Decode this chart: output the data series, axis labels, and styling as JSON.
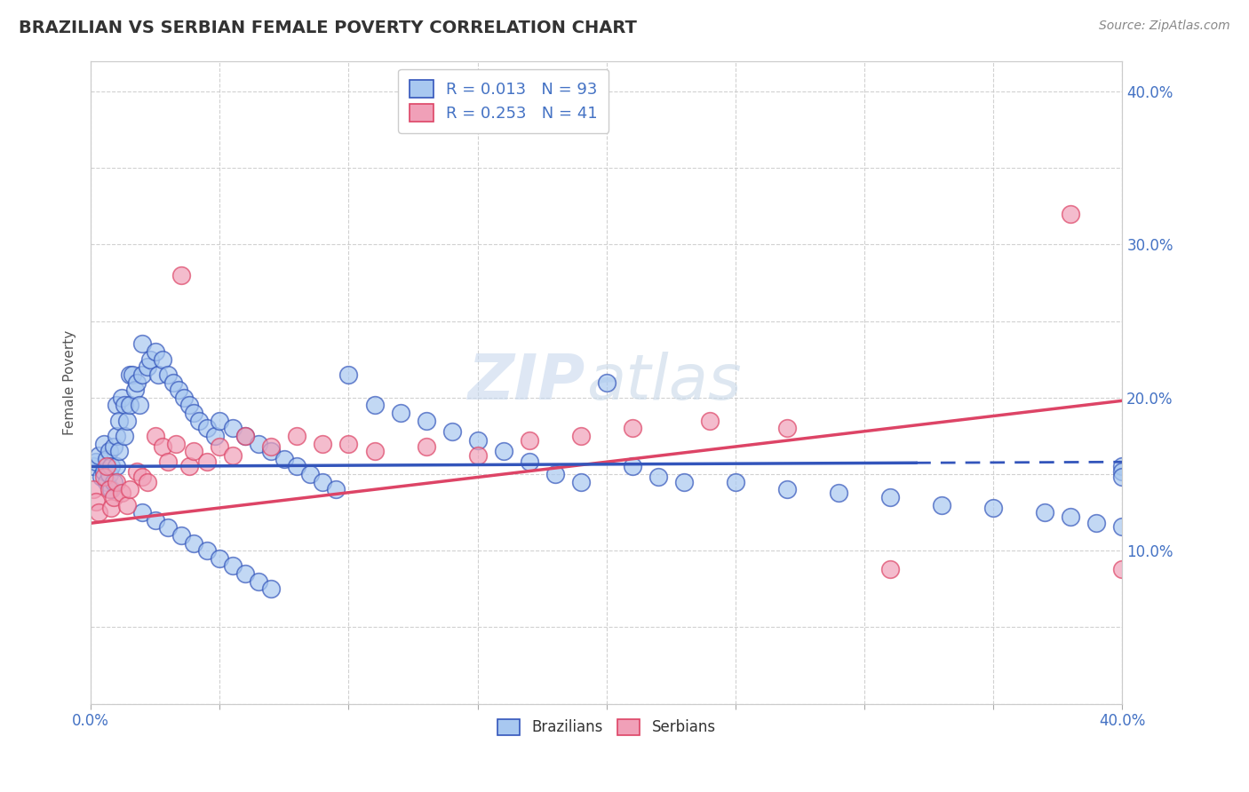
{
  "title": "BRAZILIAN VS SERBIAN FEMALE POVERTY CORRELATION CHART",
  "source_text": "Source: ZipAtlas.com",
  "ylabel": "Female Poverty",
  "xlim": [
    0.0,
    0.4
  ],
  "ylim": [
    0.0,
    0.42
  ],
  "color_brazil": "#A8C8F0",
  "color_serbia": "#F0A0B8",
  "line_color_brazil": "#3355BB",
  "line_color_serbia": "#DD4466",
  "brazil_R": 0.013,
  "brazil_N": 93,
  "serbia_R": 0.253,
  "serbia_N": 41,
  "brazil_line_y0": 0.155,
  "brazil_line_y1": 0.158,
  "serbia_line_y0": 0.118,
  "serbia_line_y1": 0.198,
  "brazil_scatter": {
    "x": [
      0.001,
      0.002,
      0.003,
      0.004,
      0.005,
      0.005,
      0.006,
      0.006,
      0.007,
      0.007,
      0.008,
      0.008,
      0.009,
      0.009,
      0.01,
      0.01,
      0.01,
      0.011,
      0.011,
      0.012,
      0.013,
      0.013,
      0.014,
      0.015,
      0.015,
      0.016,
      0.017,
      0.018,
      0.019,
      0.02,
      0.02,
      0.022,
      0.023,
      0.025,
      0.026,
      0.028,
      0.03,
      0.032,
      0.034,
      0.036,
      0.038,
      0.04,
      0.042,
      0.045,
      0.048,
      0.05,
      0.055,
      0.06,
      0.065,
      0.07,
      0.075,
      0.08,
      0.085,
      0.09,
      0.095,
      0.1,
      0.11,
      0.12,
      0.13,
      0.14,
      0.15,
      0.16,
      0.17,
      0.18,
      0.19,
      0.2,
      0.21,
      0.22,
      0.23,
      0.25,
      0.27,
      0.29,
      0.31,
      0.33,
      0.35,
      0.37,
      0.38,
      0.39,
      0.4,
      0.4,
      0.4,
      0.4,
      0.02,
      0.025,
      0.03,
      0.035,
      0.04,
      0.045,
      0.05,
      0.055,
      0.06,
      0.065,
      0.07
    ],
    "y": [
      0.155,
      0.158,
      0.162,
      0.148,
      0.152,
      0.17,
      0.16,
      0.145,
      0.165,
      0.15,
      0.155,
      0.14,
      0.168,
      0.145,
      0.195,
      0.175,
      0.155,
      0.185,
      0.165,
      0.2,
      0.195,
      0.175,
      0.185,
      0.215,
      0.195,
      0.215,
      0.205,
      0.21,
      0.195,
      0.235,
      0.215,
      0.22,
      0.225,
      0.23,
      0.215,
      0.225,
      0.215,
      0.21,
      0.205,
      0.2,
      0.195,
      0.19,
      0.185,
      0.18,
      0.175,
      0.185,
      0.18,
      0.175,
      0.17,
      0.165,
      0.16,
      0.155,
      0.15,
      0.145,
      0.14,
      0.215,
      0.195,
      0.19,
      0.185,
      0.178,
      0.172,
      0.165,
      0.158,
      0.15,
      0.145,
      0.21,
      0.155,
      0.148,
      0.145,
      0.145,
      0.14,
      0.138,
      0.135,
      0.13,
      0.128,
      0.125,
      0.122,
      0.118,
      0.116,
      0.155,
      0.152,
      0.148,
      0.125,
      0.12,
      0.115,
      0.11,
      0.105,
      0.1,
      0.095,
      0.09,
      0.085,
      0.08,
      0.075
    ]
  },
  "serbia_scatter": {
    "x": [
      0.001,
      0.002,
      0.003,
      0.005,
      0.006,
      0.007,
      0.008,
      0.009,
      0.01,
      0.012,
      0.014,
      0.015,
      0.018,
      0.02,
      0.022,
      0.025,
      0.028,
      0.03,
      0.033,
      0.035,
      0.038,
      0.04,
      0.045,
      0.05,
      0.055,
      0.06,
      0.07,
      0.08,
      0.09,
      0.1,
      0.11,
      0.13,
      0.15,
      0.17,
      0.19,
      0.21,
      0.24,
      0.27,
      0.31,
      0.38,
      0.4
    ],
    "y": [
      0.14,
      0.132,
      0.125,
      0.148,
      0.155,
      0.14,
      0.128,
      0.135,
      0.145,
      0.138,
      0.13,
      0.14,
      0.152,
      0.148,
      0.145,
      0.175,
      0.168,
      0.158,
      0.17,
      0.28,
      0.155,
      0.165,
      0.158,
      0.168,
      0.162,
      0.175,
      0.168,
      0.175,
      0.17,
      0.17,
      0.165,
      0.168,
      0.162,
      0.172,
      0.175,
      0.18,
      0.185,
      0.18,
      0.088,
      0.32,
      0.088
    ]
  }
}
